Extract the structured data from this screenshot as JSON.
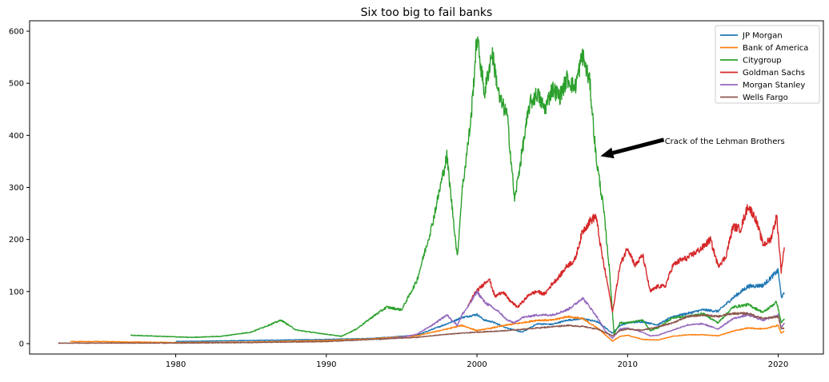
{
  "chart_data": {
    "type": "line",
    "title": "Six too big to fail banks",
    "xlabel": "",
    "ylabel": "",
    "xlim": [
      1970.3,
      2023.0
    ],
    "ylim": [
      -20,
      620
    ],
    "x_ticks": [
      "1980",
      "1990",
      "2000",
      "2010",
      "2020"
    ],
    "y_ticks": [
      "0",
      "100",
      "200",
      "300",
      "400",
      "500",
      "600"
    ],
    "grid": false,
    "legend_position": "top-right",
    "annotation": {
      "text": "Crack of the Lehman Brothers",
      "xy": [
        2008.2,
        360
      ],
      "xytext": [
        2012.2,
        390
      ]
    },
    "series": [
      {
        "name": "JP Morgan",
        "color": "#1f77b4",
        "points": [
          [
            1980.0,
            4
          ],
          [
            1985,
            6
          ],
          [
            1990,
            8
          ],
          [
            1993,
            10
          ],
          [
            1996,
            16
          ],
          [
            1998,
            38
          ],
          [
            1999,
            50
          ],
          [
            2000,
            56
          ],
          [
            2000.5,
            45
          ],
          [
            2001,
            42
          ],
          [
            2002,
            30
          ],
          [
            2003,
            22
          ],
          [
            2004,
            38
          ],
          [
            2005,
            37
          ],
          [
            2006,
            45
          ],
          [
            2007,
            48
          ],
          [
            2008,
            42
          ],
          [
            2009,
            20
          ],
          [
            2009.5,
            35
          ],
          [
            2010,
            40
          ],
          [
            2011,
            42
          ],
          [
            2012,
            36
          ],
          [
            2013,
            52
          ],
          [
            2014,
            58
          ],
          [
            2015,
            65
          ],
          [
            2016,
            62
          ],
          [
            2017,
            88
          ],
          [
            2018,
            110
          ],
          [
            2019,
            112
          ],
          [
            2019.8,
            135
          ],
          [
            2020.0,
            140
          ],
          [
            2020.2,
            90
          ],
          [
            2020.4,
            95
          ]
        ]
      },
      {
        "name": "Bank of America",
        "color": "#ff7f0e",
        "points": [
          [
            1973.0,
            4
          ],
          [
            1975,
            4
          ],
          [
            1980,
            2
          ],
          [
            1985,
            3
          ],
          [
            1990,
            6
          ],
          [
            1993,
            9
          ],
          [
            1996,
            15
          ],
          [
            1998,
            28
          ],
          [
            1999,
            35
          ],
          [
            2000,
            25
          ],
          [
            2001,
            30
          ],
          [
            2002,
            36
          ],
          [
            2003,
            40
          ],
          [
            2004,
            45
          ],
          [
            2005,
            45
          ],
          [
            2006,
            52
          ],
          [
            2007,
            48
          ],
          [
            2008,
            30
          ],
          [
            2009,
            5
          ],
          [
            2009.5,
            14
          ],
          [
            2010,
            16
          ],
          [
            2011,
            8
          ],
          [
            2012,
            7
          ],
          [
            2013,
            14
          ],
          [
            2014,
            17
          ],
          [
            2015,
            17
          ],
          [
            2016,
            15
          ],
          [
            2017,
            24
          ],
          [
            2018,
            30
          ],
          [
            2019,
            28
          ],
          [
            2020.0,
            35
          ],
          [
            2020.2,
            20
          ],
          [
            2020.4,
            24
          ]
        ]
      },
      {
        "name": "Citygroup",
        "color": "#2ca02c",
        "points": [
          [
            1977.0,
            16
          ],
          [
            1979,
            14
          ],
          [
            1981,
            12
          ],
          [
            1983,
            14
          ],
          [
            1985,
            22
          ],
          [
            1987,
            45
          ],
          [
            1988,
            26
          ],
          [
            1990,
            18
          ],
          [
            1991,
            14
          ],
          [
            1992,
            28
          ],
          [
            1993,
            50
          ],
          [
            1994,
            70
          ],
          [
            1995,
            65
          ],
          [
            1996,
            120
          ],
          [
            1997,
            225
          ],
          [
            1998,
            360
          ],
          [
            1998.7,
            165
          ],
          [
            1999,
            290
          ],
          [
            1999.6,
            430
          ],
          [
            2000.0,
            590
          ],
          [
            2000.5,
            480
          ],
          [
            2001.0,
            560
          ],
          [
            2001.5,
            470
          ],
          [
            2002.0,
            440
          ],
          [
            2002.5,
            275
          ],
          [
            2003.0,
            370
          ],
          [
            2003.5,
            460
          ],
          [
            2004.0,
            480
          ],
          [
            2004.5,
            450
          ],
          [
            2005.0,
            490
          ],
          [
            2005.5,
            475
          ],
          [
            2006.0,
            510
          ],
          [
            2006.5,
            490
          ],
          [
            2007.0,
            555
          ],
          [
            2007.5,
            500
          ],
          [
            2007.9,
            360
          ],
          [
            2008.4,
            260
          ],
          [
            2008.8,
            140
          ],
          [
            2009.1,
            18
          ],
          [
            2009.5,
            40
          ],
          [
            2010,
            40
          ],
          [
            2011,
            45
          ],
          [
            2011.5,
            25
          ],
          [
            2012,
            30
          ],
          [
            2013,
            50
          ],
          [
            2014,
            52
          ],
          [
            2015,
            58
          ],
          [
            2016,
            40
          ],
          [
            2017,
            70
          ],
          [
            2018,
            75
          ],
          [
            2019,
            60
          ],
          [
            2019.9,
            80
          ],
          [
            2020.2,
            40
          ],
          [
            2020.4,
            48
          ]
        ]
      },
      {
        "name": "Goldman Sachs",
        "color": "#d62728",
        "points": [
          [
            1999.4,
            70
          ],
          [
            1999.8,
            95
          ],
          [
            2000.3,
            110
          ],
          [
            2000.8,
            125
          ],
          [
            2001.2,
            90
          ],
          [
            2001.7,
            100
          ],
          [
            2002.2,
            82
          ],
          [
            2002.7,
            70
          ],
          [
            2003.5,
            95
          ],
          [
            2004.0,
            100
          ],
          [
            2004.5,
            95
          ],
          [
            2005.0,
            115
          ],
          [
            2005.5,
            130
          ],
          [
            2006.0,
            150
          ],
          [
            2006.5,
            160
          ],
          [
            2007.0,
            215
          ],
          [
            2007.5,
            235
          ],
          [
            2007.9,
            245
          ],
          [
            2008.3,
            170
          ],
          [
            2008.7,
            110
          ],
          [
            2009.0,
            60
          ],
          [
            2009.5,
            150
          ],
          [
            2010.0,
            185
          ],
          [
            2010.5,
            150
          ],
          [
            2011.0,
            170
          ],
          [
            2011.5,
            100
          ],
          [
            2012.0,
            110
          ],
          [
            2012.5,
            110
          ],
          [
            2013.0,
            150
          ],
          [
            2013.5,
            160
          ],
          [
            2014.0,
            165
          ],
          [
            2014.5,
            175
          ],
          [
            2015.0,
            185
          ],
          [
            2015.5,
            200
          ],
          [
            2016.0,
            150
          ],
          [
            2016.5,
            165
          ],
          [
            2017.0,
            225
          ],
          [
            2017.5,
            220
          ],
          [
            2018.0,
            265
          ],
          [
            2018.5,
            240
          ],
          [
            2019.0,
            190
          ],
          [
            2019.5,
            200
          ],
          [
            2019.9,
            245
          ],
          [
            2020.2,
            140
          ],
          [
            2020.4,
            185
          ]
        ]
      },
      {
        "name": "Morgan Stanley",
        "color": "#9467bd",
        "points": [
          [
            1993.5,
            8
          ],
          [
            1995,
            12
          ],
          [
            1996,
            18
          ],
          [
            1997,
            35
          ],
          [
            1998,
            55
          ],
          [
            1998.7,
            35
          ],
          [
            1999,
            55
          ],
          [
            1999.5,
            75
          ],
          [
            2000.0,
            100
          ],
          [
            2000.5,
            80
          ],
          [
            2001.0,
            70
          ],
          [
            2001.5,
            60
          ],
          [
            2002.0,
            45
          ],
          [
            2002.5,
            40
          ],
          [
            2003,
            50
          ],
          [
            2004,
            55
          ],
          [
            2005,
            55
          ],
          [
            2006,
            65
          ],
          [
            2006.5,
            75
          ],
          [
            2007.0,
            88
          ],
          [
            2007.5,
            70
          ],
          [
            2008.0,
            50
          ],
          [
            2008.5,
            25
          ],
          [
            2009.0,
            10
          ],
          [
            2009.5,
            28
          ],
          [
            2010,
            30
          ],
          [
            2011,
            22
          ],
          [
            2011.5,
            15
          ],
          [
            2012,
            16
          ],
          [
            2013,
            26
          ],
          [
            2014,
            36
          ],
          [
            2015,
            38
          ],
          [
            2016,
            28
          ],
          [
            2017,
            48
          ],
          [
            2018,
            55
          ],
          [
            2019,
            45
          ],
          [
            2020.0,
            55
          ],
          [
            2020.2,
            30
          ],
          [
            2020.4,
            40
          ]
        ]
      },
      {
        "name": "Wells Fargo",
        "color": "#8c564b",
        "points": [
          [
            1972.2,
            1
          ],
          [
            1975,
            1
          ],
          [
            1980,
            1
          ],
          [
            1985,
            2
          ],
          [
            1990,
            4
          ],
          [
            1993,
            8
          ],
          [
            1996,
            12
          ],
          [
            1998,
            18
          ],
          [
            2000,
            22
          ],
          [
            2002,
            25
          ],
          [
            2004,
            30
          ],
          [
            2006,
            35
          ],
          [
            2007,
            33
          ],
          [
            2008,
            28
          ],
          [
            2009,
            15
          ],
          [
            2009.5,
            25
          ],
          [
            2010,
            28
          ],
          [
            2011,
            26
          ],
          [
            2012,
            32
          ],
          [
            2013,
            40
          ],
          [
            2014,
            52
          ],
          [
            2015,
            55
          ],
          [
            2016,
            52
          ],
          [
            2017,
            58
          ],
          [
            2018,
            58
          ],
          [
            2019,
            48
          ],
          [
            2020.0,
            52
          ],
          [
            2020.2,
            28
          ],
          [
            2020.4,
            30
          ]
        ]
      }
    ]
  }
}
